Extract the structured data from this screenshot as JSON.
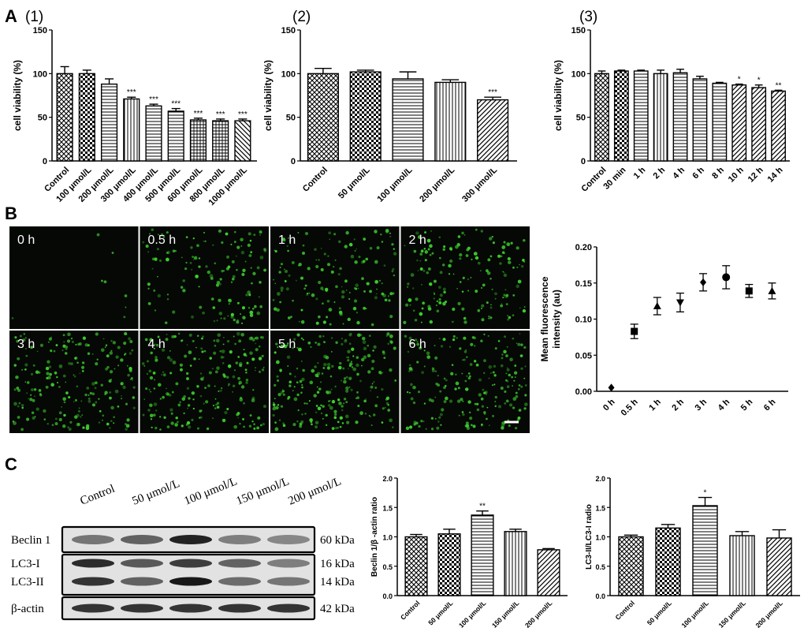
{
  "panel_letters": {
    "A": "A",
    "B": "B",
    "C": "C"
  },
  "colors": {
    "axis": "#000000",
    "bar_fill": "#ffffff",
    "micro_bg": "#050805",
    "cell_green": "#3fcf2f",
    "text_white": "#ffffff"
  },
  "chart_data": [
    {
      "id": "A1",
      "type": "bar",
      "sub_label": "(1)",
      "ylabel": "cell viability (%)",
      "ylim": [
        0,
        150
      ],
      "yticks": [
        0,
        50,
        100,
        150
      ],
      "categories": [
        "Control",
        "100 μmol/L",
        "200 μmol/L",
        "300 μmol/L",
        "400 μmol/L",
        "500 μmol/L",
        "600 μmol/L",
        "800 μmol/L",
        "1000 μmol/L"
      ],
      "values": [
        100,
        100,
        88,
        71,
        63,
        57,
        47,
        46,
        46
      ],
      "errors": [
        8,
        4,
        6,
        2,
        2,
        3,
        2,
        2,
        2
      ],
      "patterns": [
        "crosshatch",
        "checker",
        "hlines",
        "vlines",
        "hlines",
        "hlines",
        "grid",
        "grid",
        "diag-back"
      ],
      "significance": [
        "",
        "",
        "",
        "***",
        "***",
        "***",
        "***",
        "***",
        "***"
      ]
    },
    {
      "id": "A2",
      "type": "bar",
      "sub_label": "(2)",
      "ylabel": "cell viability (%)",
      "ylim": [
        0,
        150
      ],
      "yticks": [
        0,
        50,
        100,
        150
      ],
      "categories": [
        "Control",
        "50 μmol/L",
        "100 μmol/L",
        "200 μmol/L",
        "300 μmol/L"
      ],
      "values": [
        100,
        102,
        94,
        90,
        70
      ],
      "errors": [
        6,
        2,
        8,
        3,
        3
      ],
      "patterns": [
        "crosshatch",
        "checker",
        "hlines",
        "vlines",
        "diag"
      ],
      "significance": [
        "",
        "",
        "",
        "",
        "***"
      ]
    },
    {
      "id": "A3",
      "type": "bar",
      "sub_label": "(3)",
      "ylabel": "cell viability (%)",
      "ylim": [
        0,
        150
      ],
      "yticks": [
        0,
        50,
        100,
        150
      ],
      "categories": [
        "Control",
        "30 min",
        "1 h",
        "2 h",
        "4 h",
        "6 h",
        "8 h",
        "10 h",
        "12 h",
        "14 h"
      ],
      "values": [
        100,
        103,
        103,
        100,
        101,
        94,
        89,
        87,
        84,
        80
      ],
      "errors": [
        3,
        1,
        1,
        4,
        4,
        3,
        1,
        1,
        3,
        1
      ],
      "patterns": [
        "crosshatch",
        "checker",
        "hlines",
        "vlines",
        "hlines",
        "hlines",
        "hlines",
        "diag",
        "diag",
        "diag"
      ],
      "significance": [
        "",
        "",
        "",
        "",
        "",
        "",
        "",
        "*",
        "*",
        "**"
      ]
    },
    {
      "id": "B",
      "type": "scatter",
      "ylabel_lines": [
        "Mean fluorescence",
        "intensity (au)"
      ],
      "ylim": [
        0,
        0.2
      ],
      "yticks": [
        "0.00",
        "0.05",
        "0.10",
        "0.15",
        "0.20"
      ],
      "categories": [
        "0 h",
        "0.5 h",
        "1 h",
        "2 h",
        "3 h",
        "4 h",
        "5 h",
        "6 h"
      ],
      "values": [
        0.005,
        0.083,
        0.118,
        0.123,
        0.151,
        0.158,
        0.139,
        0.139
      ],
      "errors": [
        0.001,
        0.01,
        0.012,
        0.013,
        0.012,
        0.016,
        0.009,
        0.011
      ],
      "markers": [
        "diamond",
        "square",
        "triangle",
        "triangle-down",
        "diamond",
        "circle",
        "square",
        "triangle"
      ]
    },
    {
      "id": "C1",
      "type": "bar",
      "ylabel": "Beclin 1/β -actin ratio",
      "ylim": [
        0,
        2.0
      ],
      "yticks": [
        "0.0",
        "0.5",
        "1.0",
        "1.5",
        "2.0"
      ],
      "categories": [
        "Control",
        "50 μmol/L",
        "100 μmol/L",
        "150 μmol/L",
        "200 μmol/L"
      ],
      "values": [
        1.0,
        1.05,
        1.37,
        1.09,
        0.78
      ],
      "errors": [
        0.04,
        0.08,
        0.07,
        0.04,
        0.02
      ],
      "patterns": [
        "crosshatch",
        "checker",
        "hlines",
        "vlines",
        "diag"
      ],
      "significance": [
        "",
        "",
        "**",
        "",
        ""
      ]
    },
    {
      "id": "C2",
      "type": "bar",
      "ylabel": "LC3-II/LC3-I radio",
      "ylim": [
        0,
        2.0
      ],
      "yticks": [
        "0.0",
        "0.5",
        "1.0",
        "1.5",
        "2.0"
      ],
      "categories": [
        "Control",
        "50 μmol/L",
        "100 μmol/L",
        "150 μmol/L",
        "200 μmol/L"
      ],
      "values": [
        1.0,
        1.15,
        1.53,
        1.02,
        0.98
      ],
      "errors": [
        0.03,
        0.06,
        0.14,
        0.07,
        0.14
      ],
      "patterns": [
        "crosshatch",
        "checker",
        "hlines",
        "vlines",
        "diag"
      ],
      "significance": [
        "",
        "",
        "*",
        "",
        ""
      ]
    }
  ],
  "micrographs": {
    "labels": [
      "0 h",
      "0.5 h",
      "1 h",
      "2 h",
      "3 h",
      "4 h",
      "5 h",
      "6 h"
    ],
    "cell_density": [
      0.03,
      0.55,
      0.6,
      0.65,
      0.85,
      0.9,
      0.95,
      0.8
    ]
  },
  "western_blot": {
    "columns": [
      "Control",
      "50 μmol/L",
      "100 μmol/L",
      "150 μmol/L",
      "200 μmol/L"
    ],
    "rows": [
      {
        "label": "Beclin 1",
        "size": "60 kDa",
        "intensity": [
          0.45,
          0.55,
          0.9,
          0.4,
          0.35
        ]
      },
      {
        "label": "LC3-I",
        "size": "16 kDa",
        "intensity": [
          0.85,
          0.6,
          0.75,
          0.55,
          0.4
        ]
      },
      {
        "label": "LC3-II",
        "size": "14 kDa",
        "intensity": [
          0.8,
          0.55,
          0.95,
          0.5,
          0.45
        ]
      },
      {
        "label": "β-actin",
        "size": "42 kDa",
        "intensity": [
          0.8,
          0.8,
          0.8,
          0.8,
          0.8
        ]
      }
    ]
  }
}
